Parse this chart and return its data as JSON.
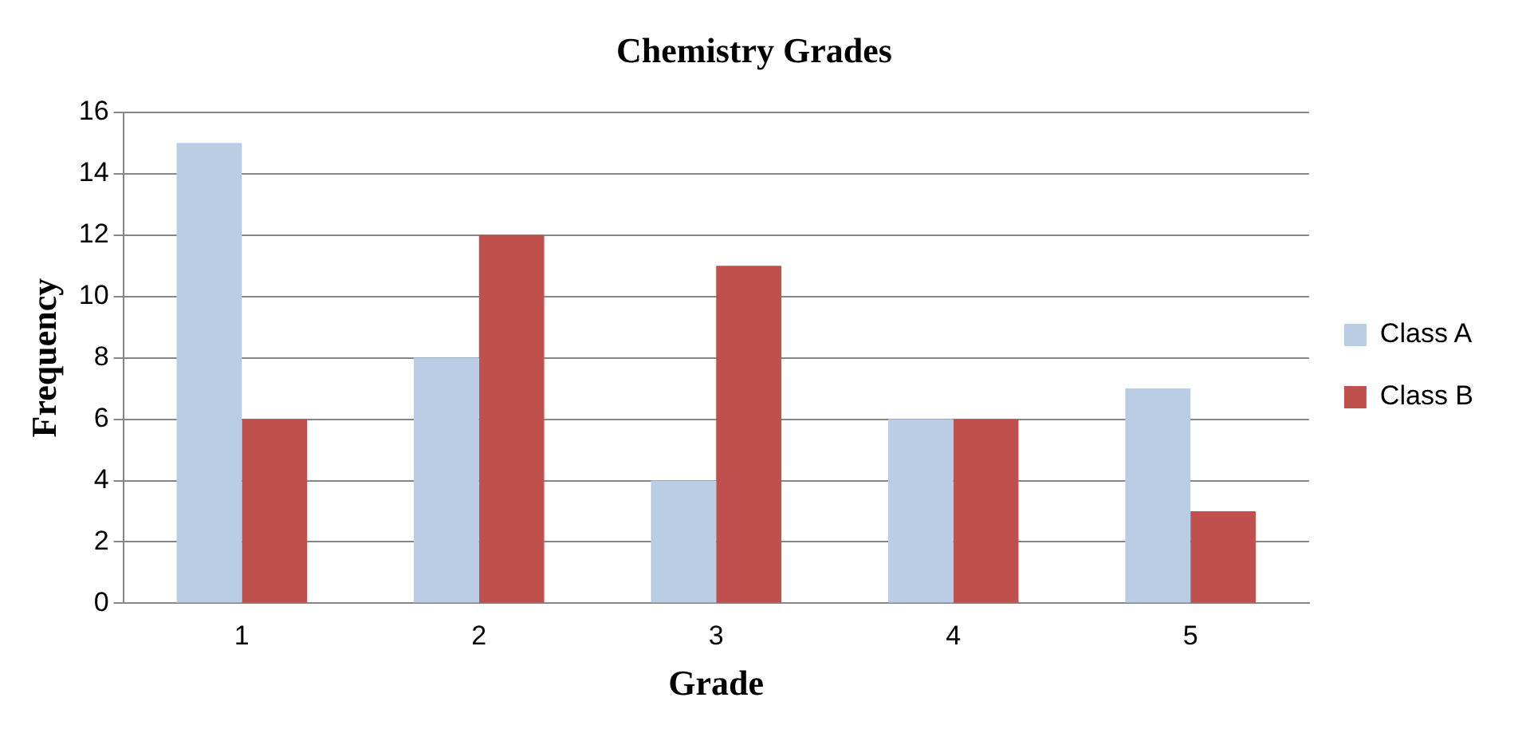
{
  "chart_data": {
    "type": "bar",
    "title": "Chemistry Grades",
    "xlabel": "Grade",
    "ylabel": "Frequency",
    "categories": [
      "1",
      "2",
      "3",
      "4",
      "5"
    ],
    "series": [
      {
        "name": "Class A",
        "color": "#b9cde5",
        "values": [
          15,
          8,
          4,
          6,
          7
        ]
      },
      {
        "name": "Class B",
        "color": "#c0504d",
        "values": [
          6,
          12,
          11,
          6,
          3
        ]
      }
    ],
    "ylim": [
      0,
      16
    ],
    "yticks": [
      0,
      2,
      4,
      6,
      8,
      10,
      12,
      14,
      16
    ],
    "grid": "y",
    "legend": "right"
  }
}
